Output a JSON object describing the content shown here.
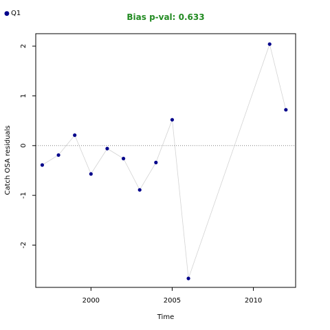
{
  "chart_data": {
    "type": "line",
    "title": "Bias p-val: 0.633",
    "xlabel": "Time",
    "ylabel": "Catch OSA residuals",
    "xlim": [
      1996.6,
      2012.6
    ],
    "ylim": [
      -2.85,
      2.25
    ],
    "x_ticks": [
      2000,
      2005,
      2010
    ],
    "y_ticks": [
      -2,
      -1,
      0,
      1,
      2
    ],
    "reference_line": 0,
    "grid": false,
    "legend_position": "top-left",
    "series": [
      {
        "name": "Q1",
        "x": [
          1997,
          1998,
          1999,
          2000,
          2001,
          2002,
          2003,
          2004,
          2005,
          2006,
          2011,
          2012
        ],
        "values": [
          -0.39,
          -0.19,
          0.21,
          -0.57,
          -0.06,
          -0.26,
          -0.89,
          -0.34,
          0.52,
          -2.67,
          2.04,
          0.72
        ]
      }
    ],
    "colors": {
      "points": "#00008b",
      "line": "#d3d3d3",
      "title": "#228b22",
      "reference": "#808080"
    }
  }
}
